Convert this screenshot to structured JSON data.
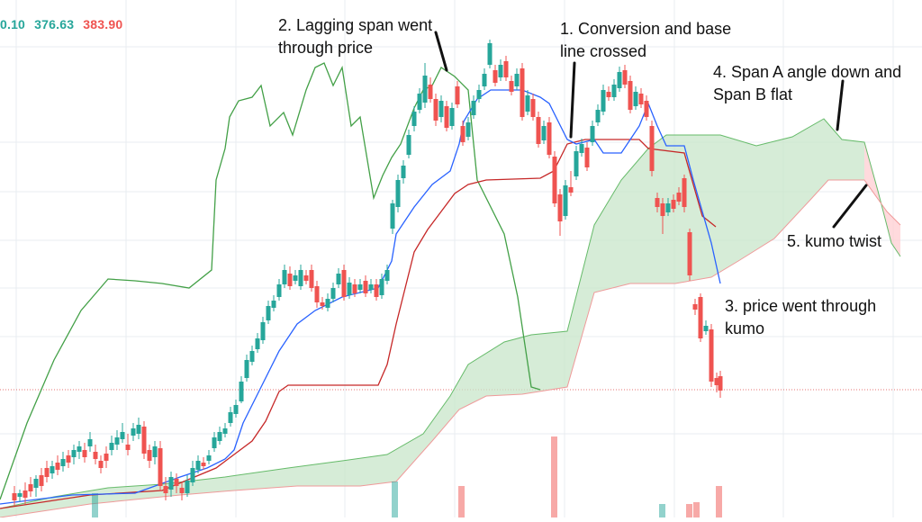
{
  "header": {
    "values": [
      "0.10",
      "376.63",
      "383.90"
    ],
    "colors": [
      "#26a69a",
      "#26a69a",
      "#ef5350"
    ]
  },
  "annotations": [
    {
      "id": "lagging",
      "lines": [
        "2. Lagging span went",
        "through price"
      ]
    },
    {
      "id": "conversion",
      "lines": [
        "1. Conversion and base",
        "line crossed"
      ]
    },
    {
      "id": "spanA",
      "lines": [
        "4. Span A angle down and",
        "Span B flat"
      ]
    },
    {
      "id": "twist",
      "lines": [
        "5. kumo twist"
      ]
    },
    {
      "id": "kumo",
      "lines": [
        "3. price went through",
        "kumo"
      ]
    }
  ],
  "colors": {
    "up": "#26a69a",
    "down": "#ef5350",
    "conversion_line": "#2962ff",
    "base_line": "#c62828",
    "lagging_span": "#43a047",
    "span_a": "#66bb6a",
    "span_b": "#ef9a9a",
    "cloud_bull": "#c8e6c9",
    "cloud_bear": "#ffcdd2",
    "grid": "#e8ecf0"
  },
  "chart_data": {
    "type": "candlestick",
    "indicator": "Ichimoku Cloud",
    "grid": true
  }
}
